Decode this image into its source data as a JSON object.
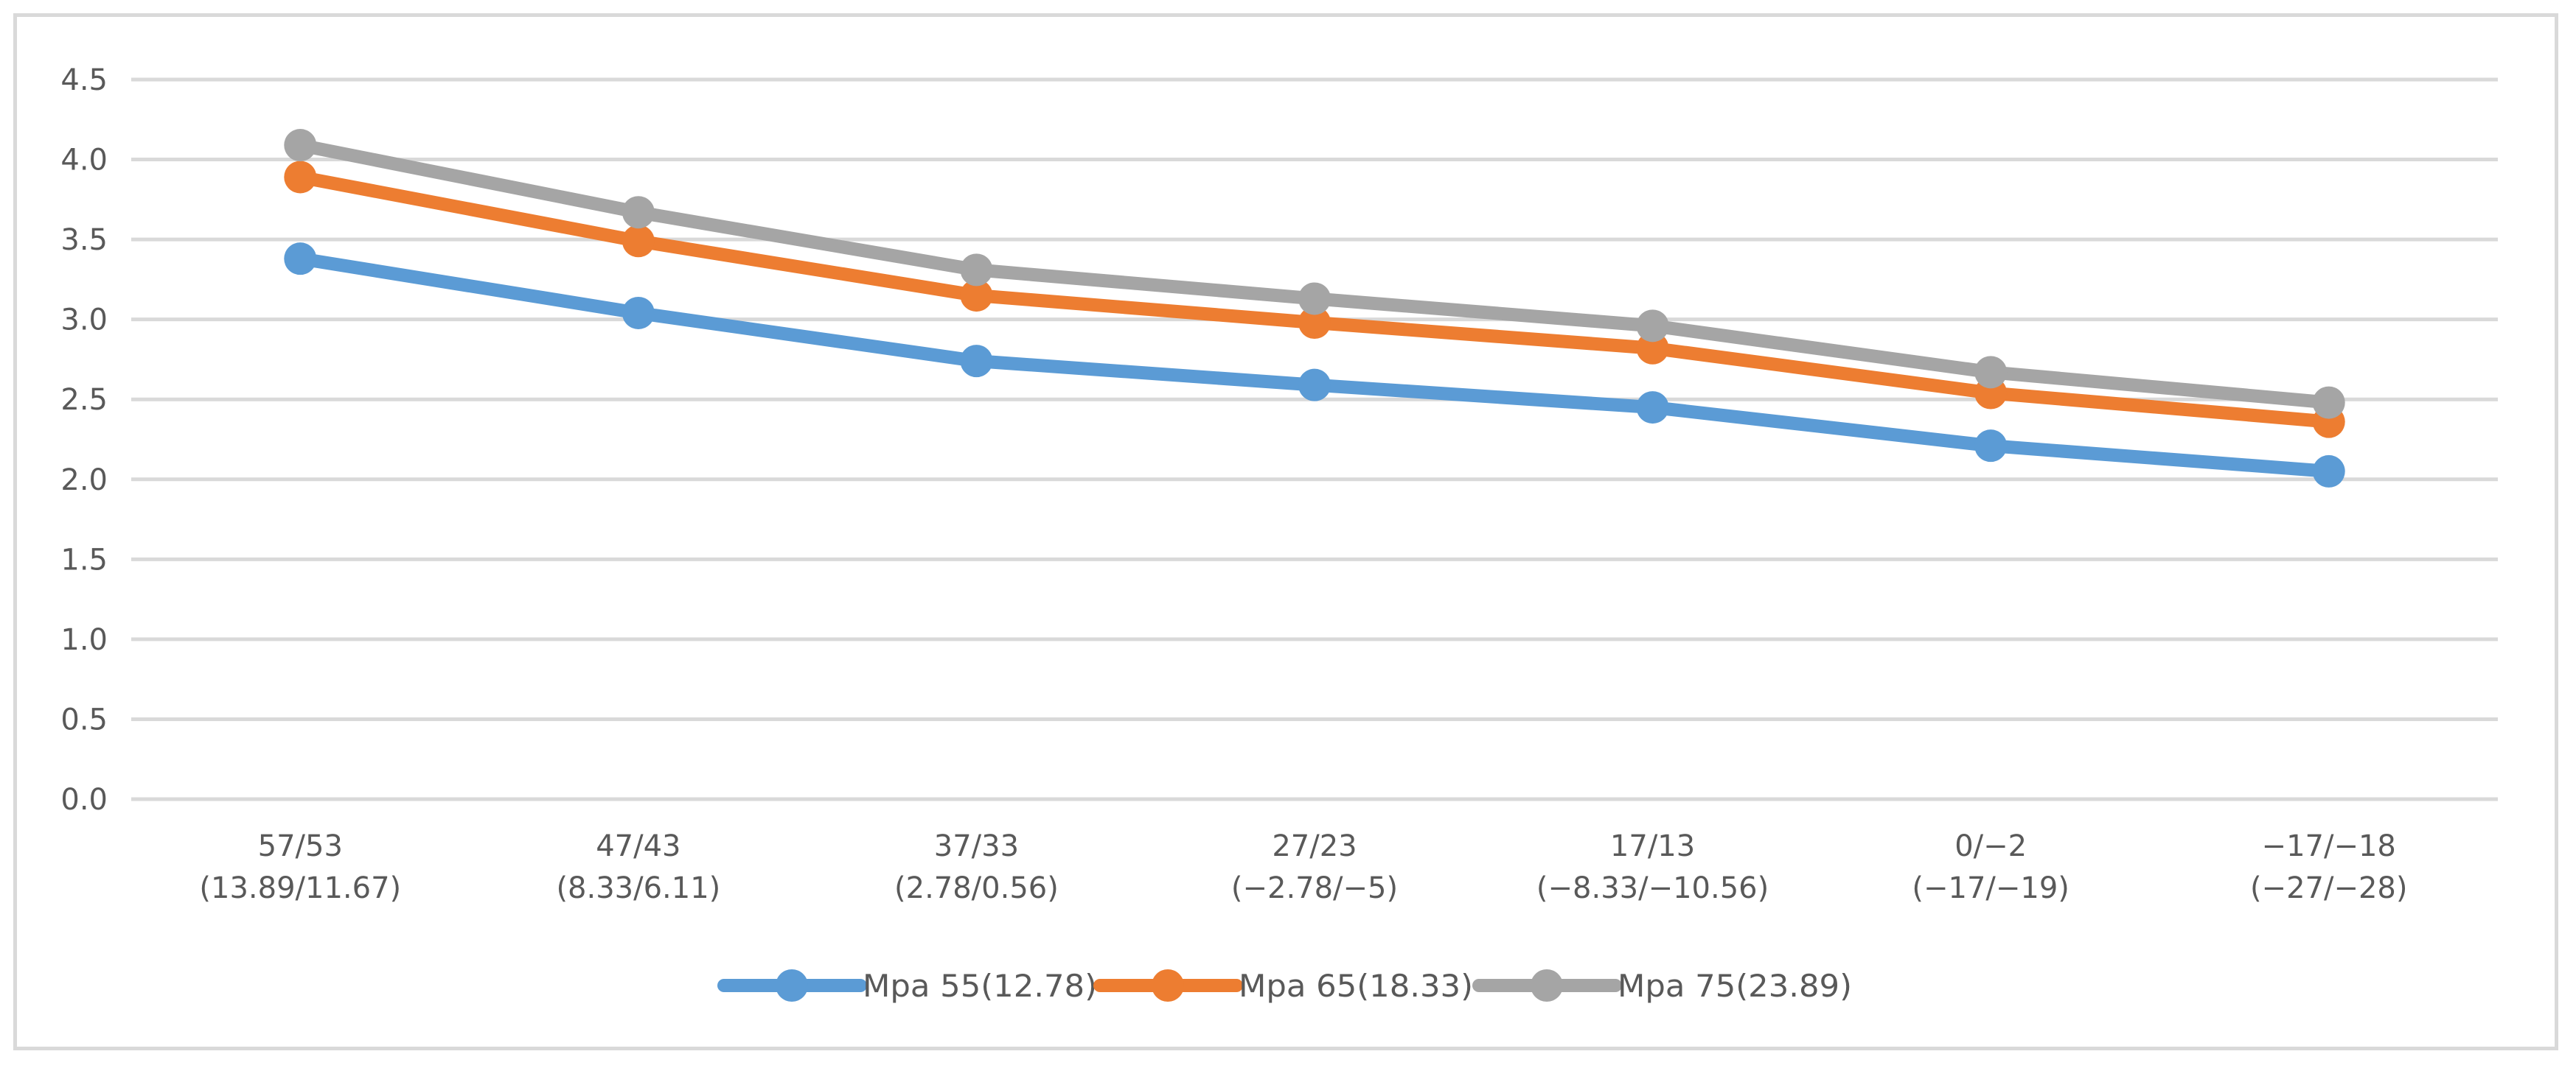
{
  "chart_data": {
    "type": "line",
    "title": "",
    "xlabel": "",
    "ylabel": "",
    "ylim": [
      0,
      4.5
    ],
    "y_ticks": [
      "0.0",
      "0.5",
      "1.0",
      "1.5",
      "2.0",
      "2.5",
      "3.0",
      "3.5",
      "4.0",
      "4.5"
    ],
    "grid": "horizontal",
    "legend_position": "bottom",
    "categories": [
      [
        "57/53",
        "(13.89/11.67)"
      ],
      [
        "47/43",
        "(8.33/6.11)"
      ],
      [
        "37/33",
        "(2.78/0.56)"
      ],
      [
        "27/23",
        "(−2.78/−5)"
      ],
      [
        "17/13",
        "(−8.33/−10.56)"
      ],
      [
        "0/−2",
        "(−17/−19)"
      ],
      [
        "−17/−18",
        "(−27/−28)"
      ]
    ],
    "series": [
      {
        "name": "Mpa 55(12.78)",
        "color": "#5b9bd5",
        "values": [
          3.38,
          3.04,
          2.74,
          2.59,
          2.45,
          2.21,
          2.05
        ]
      },
      {
        "name": "Mpa 65(18.33)",
        "color": "#ed7d31",
        "values": [
          3.89,
          3.49,
          3.15,
          2.98,
          2.82,
          2.54,
          2.36
        ]
      },
      {
        "name": "Mpa 75(23.89)",
        "color": "#a5a5a5",
        "values": [
          4.09,
          3.67,
          3.31,
          3.13,
          2.96,
          2.67,
          2.48
        ]
      }
    ]
  }
}
